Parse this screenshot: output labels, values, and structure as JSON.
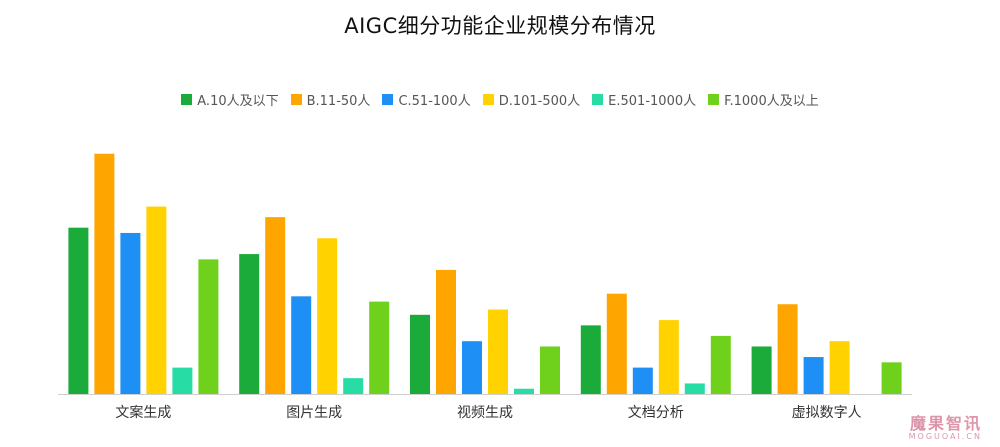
{
  "chart_data": {
    "type": "bar",
    "title": "AIGC细分功能企业规模分布情况",
    "xlabel": "",
    "ylabel": "",
    "categories": [
      "文案生成",
      "图片生成",
      "视频生成",
      "文档分析",
      "虚拟数字人"
    ],
    "series": [
      {
        "name": "A.10人及以下",
        "color": "#1aab3a",
        "values": [
          63,
          53,
          30,
          26,
          18
        ]
      },
      {
        "name": "B.11-50人",
        "color": "#ffa500",
        "values": [
          91,
          67,
          47,
          38,
          34
        ]
      },
      {
        "name": "C.51-100人",
        "color": "#1e8ff5",
        "values": [
          61,
          37,
          20,
          10,
          14
        ]
      },
      {
        "name": "D.101-500人",
        "color": "#ffd200",
        "values": [
          71,
          59,
          32,
          28,
          20
        ]
      },
      {
        "name": "E.501-1000人",
        "color": "#28dca6",
        "values": [
          10,
          6,
          2,
          4,
          0
        ]
      },
      {
        "name": "F.1000人及以上",
        "color": "#6fd11c",
        "values": [
          51,
          35,
          18,
          22,
          12
        ]
      }
    ],
    "ylim": [
      0,
      100
    ],
    "grid": false,
    "legend_position": "top"
  },
  "watermark": {
    "main": "魔果智讯",
    "sub": "MOGUOAI.CN"
  }
}
